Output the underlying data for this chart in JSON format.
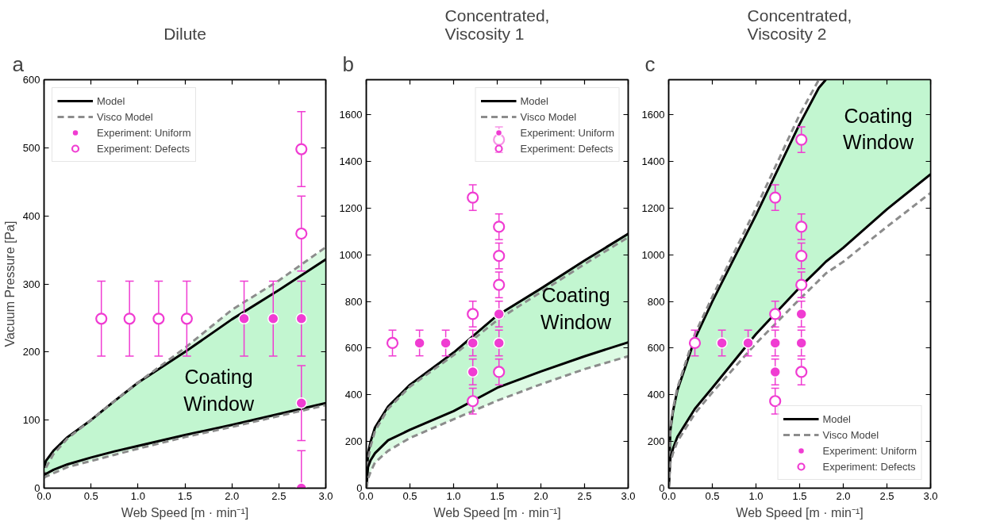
{
  "chart_data": [
    {
      "type": "line",
      "title": "Dilute",
      "xlabel": "Web Speed [m · min⁻¹]",
      "ylabel": "Vacuum Pressure [Pa]",
      "xlim": [
        0,
        3
      ],
      "ylim": [
        0,
        600
      ],
      "xticks": [
        {
          "value": 0,
          "label": "0.0"
        },
        {
          "value": 0.5,
          "label": "0.5"
        },
        {
          "value": 1,
          "label": "1.0"
        },
        {
          "value": 1.5,
          "label": "1.5"
        },
        {
          "value": 2,
          "label": "2.0"
        },
        {
          "value": 2.5,
          "label": "2.5"
        },
        {
          "value": 3,
          "label": "3.0"
        }
      ],
      "yticks": [
        0,
        100,
        200,
        300,
        400,
        500,
        600
      ],
      "grid": false,
      "legend": "top left",
      "annotations": [
        "a",
        "Coating\nWindow"
      ],
      "x": [
        0,
        0.02,
        0.1,
        0.25,
        0.5,
        0.75,
        1,
        1.5,
        2,
        2.5,
        3
      ],
      "series": [
        {
          "name": "Model",
          "color": "#000000",
          "line_style": "solid",
          "values": [
            30,
            40,
            55,
            75,
            100,
            128,
            155,
            200,
            248,
            291,
            336
          ],
          "lower": [
            20,
            21,
            27,
            35,
            45,
            54,
            62,
            78,
            93,
            109,
            125
          ],
          "upper": [
            30,
            40,
            55,
            75,
            100,
            128,
            155,
            200,
            248,
            291,
            336
          ]
        },
        {
          "name": "Visco Model",
          "color": "#8c8c8c",
          "line_style": "dashed",
          "values": [
            15,
            30,
            50,
            73,
            100,
            128,
            155,
            206,
            262,
            305,
            354
          ],
          "lower": [
            15,
            17,
            22,
            31,
            40,
            49,
            58,
            75,
            90,
            106,
            122
          ],
          "upper": [
            15,
            30,
            50,
            73,
            100,
            128,
            155,
            206,
            262,
            305,
            354
          ]
        },
        {
          "color": "#000000",
          "line_style": "solid",
          "values": [
            20,
            21,
            27,
            35,
            45,
            54,
            62,
            78,
            93,
            109,
            125
          ]
        },
        {
          "color": "#8c8c8c",
          "line_style": "dashed",
          "values": [
            15,
            17,
            22,
            31,
            40,
            49,
            58,
            75,
            90,
            106,
            122
          ]
        },
        {
          "type": "scatter",
          "name": "Experiment: Uniform",
          "color": "#f03cd2",
          "marker": "circle",
          "x": [
            2.13,
            2.44,
            2.74,
            2.74,
            2.74
          ],
          "values": [
            249,
            249,
            249,
            125,
            0
          ],
          "errors": [
            55,
            55,
            55,
            55,
            [
              0,
              55
            ]
          ]
        },
        {
          "type": "scatter",
          "name": "Experiment: Defects",
          "color": "#f03cd2",
          "marker": "circle_open",
          "x": [
            0.61,
            0.91,
            1.22,
            1.52,
            2.74,
            2.74
          ],
          "values": [
            249,
            249,
            249,
            249,
            374,
            498
          ],
          "errors": [
            55,
            55,
            55,
            55,
            55,
            55
          ]
        }
      ]
    },
    {
      "type": "line",
      "title": "Concentrated,\nViscosity 1",
      "xlabel": "Web Speed [m · min⁻¹]",
      "xlim": [
        0,
        3
      ],
      "ylim": [
        0,
        1750
      ],
      "xticks": [
        {
          "value": 0,
          "label": "0.0"
        },
        {
          "value": 0.5,
          "label": "0.5"
        },
        {
          "value": 1,
          "label": "1.0"
        },
        {
          "value": 1.5,
          "label": "1.5"
        },
        {
          "value": 2,
          "label": "2.0"
        },
        {
          "value": 2.5,
          "label": "2.5"
        },
        {
          "value": 3,
          "label": "3.0"
        }
      ],
      "yticks": [
        0,
        200,
        400,
        600,
        800,
        1000,
        1200,
        1400,
        1600
      ],
      "grid": false,
      "legend": "top right",
      "annotations": [
        "b",
        "Coating\nWindow"
      ],
      "x": [
        0,
        0.02,
        0.05,
        0.1,
        0.25,
        0.5,
        1,
        1.5,
        2,
        2.5,
        3
      ],
      "series": [
        {
          "name": "Model",
          "color": "#000000",
          "line_style": "solid",
          "values": [
            0,
            150,
            200,
            260,
            350,
            443,
            581,
            740,
            855,
            975,
            1090
          ],
          "lower": [
            0,
            90,
            120,
            150,
            205,
            250,
            330,
            430,
            500,
            565,
            625
          ],
          "upper": [
            0,
            150,
            200,
            260,
            350,
            443,
            581,
            740,
            855,
            975,
            1090
          ]
        },
        {
          "name": "Visco Model",
          "color": "#8c8c8c",
          "line_style": "dashed",
          "values": [
            0,
            120,
            180,
            245,
            340,
            435,
            570,
            720,
            840,
            960,
            1075
          ],
          "lower": [
            0,
            40,
            70,
            110,
            160,
            215,
            295,
            375,
            445,
            510,
            565
          ],
          "upper": [
            0,
            120,
            180,
            245,
            340,
            435,
            570,
            720,
            840,
            960,
            1075
          ]
        },
        {
          "color": "#000000",
          "line_style": "solid",
          "values": [
            0,
            90,
            120,
            150,
            205,
            250,
            330,
            430,
            500,
            565,
            625
          ]
        },
        {
          "color": "#8c8c8c",
          "line_style": "dashed",
          "values": [
            0,
            40,
            70,
            110,
            160,
            215,
            295,
            375,
            445,
            510,
            565
          ]
        },
        {
          "type": "scatter",
          "name": "Experiment: Uniform",
          "color": "#f03cd2",
          "marker": "circle",
          "x": [
            0.61,
            0.91,
            1.22,
            1.22,
            1.52,
            1.52
          ],
          "values": [
            622,
            622,
            622,
            498,
            746,
            622
          ],
          "errors": [
            55,
            55,
            55,
            55,
            55,
            55
          ]
        },
        {
          "type": "scatter",
          "name": "Experiment: Defects",
          "color": "#f03cd2",
          "marker": "circle_open",
          "x": [
            0.3,
            1.22,
            1.22,
            1.22,
            1.52,
            1.52,
            1.52,
            1.52,
            1.52
          ],
          "values": [
            622,
            1245,
            746,
            373,
            1493,
            1120,
            995,
            871,
            498
          ],
          "errors": [
            55,
            55,
            55,
            55,
            55,
            55,
            55,
            55,
            55
          ]
        }
      ]
    },
    {
      "type": "line",
      "title": "Concentrated,\nViscosity 2",
      "xlabel": "Web Speed [m · min⁻¹]",
      "xlim": [
        0,
        3
      ],
      "ylim": [
        0,
        1750
      ],
      "xticks": [
        {
          "value": 0,
          "label": "0.0"
        },
        {
          "value": 0.5,
          "label": "0.5"
        },
        {
          "value": 1,
          "label": "1.0"
        },
        {
          "value": 1.5,
          "label": "1.5"
        },
        {
          "value": 2,
          "label": "2.0"
        },
        {
          "value": 2.5,
          "label": "2.5"
        },
        {
          "value": 3,
          "label": "3.0"
        }
      ],
      "yticks": [
        0,
        200,
        400,
        600,
        800,
        1000,
        1200,
        1400,
        1600
      ],
      "grid": false,
      "legend": "bottom right",
      "annotations": [
        "c",
        "Coating\nWindow"
      ],
      "x": [
        0,
        0.02,
        0.05,
        0.1,
        0.3,
        0.5,
        1,
        1.5,
        1.72,
        1.8,
        2,
        2.5,
        3
      ],
      "series": [
        {
          "name": "Model",
          "color": "#000000",
          "line_style": "solid",
          "values": [
            0,
            250,
            330,
            420,
            640,
            800,
            1170,
            1560,
            1715,
            1750,
            null,
            null,
            null
          ],
          "lower": [
            0,
            130,
            170,
            220,
            340,
            430,
            660,
            860,
            940,
            970,
            1030,
            1195,
            1345
          ],
          "upper": [
            0,
            250,
            330,
            420,
            640,
            800,
            1170,
            1560,
            1715,
            1750,
            1750,
            1750,
            1750
          ]
        },
        {
          "name": "Visco Model",
          "color": "#8c8c8c",
          "line_style": "dashed",
          "values": [
            0,
            260,
            340,
            430,
            660,
            820,
            1200,
            1600,
            1750,
            null,
            null,
            null,
            null
          ]
        },
        {
          "color": "#000000",
          "line_style": "solid",
          "values": [
            0,
            130,
            170,
            220,
            340,
            430,
            660,
            860,
            940,
            970,
            1030,
            1195,
            1345
          ]
        },
        {
          "color": "#8c8c8c",
          "line_style": "dashed",
          "values": [
            0,
            110,
            150,
            200,
            320,
            410,
            620,
            810,
            890,
            920,
            970,
            1120,
            1265
          ]
        },
        {
          "type": "scatter",
          "name": "Experiment: Uniform",
          "color": "#f03cd2",
          "marker": "circle",
          "x": [
            0.61,
            0.91,
            1.22,
            1.22,
            1.52,
            1.52
          ],
          "values": [
            622,
            622,
            622,
            498,
            746,
            622
          ],
          "errors": [
            55,
            55,
            55,
            55,
            55,
            55
          ]
        },
        {
          "type": "scatter",
          "name": "Experiment: Defects",
          "color": "#f03cd2",
          "marker": "circle_open",
          "x": [
            0.3,
            1.22,
            1.22,
            1.22,
            1.52,
            1.52,
            1.52,
            1.52,
            1.52
          ],
          "values": [
            622,
            1245,
            746,
            373,
            1493,
            1120,
            995,
            871,
            498
          ],
          "errors": [
            55,
            55,
            55,
            55,
            55,
            55,
            55,
            55,
            55
          ]
        }
      ]
    }
  ]
}
